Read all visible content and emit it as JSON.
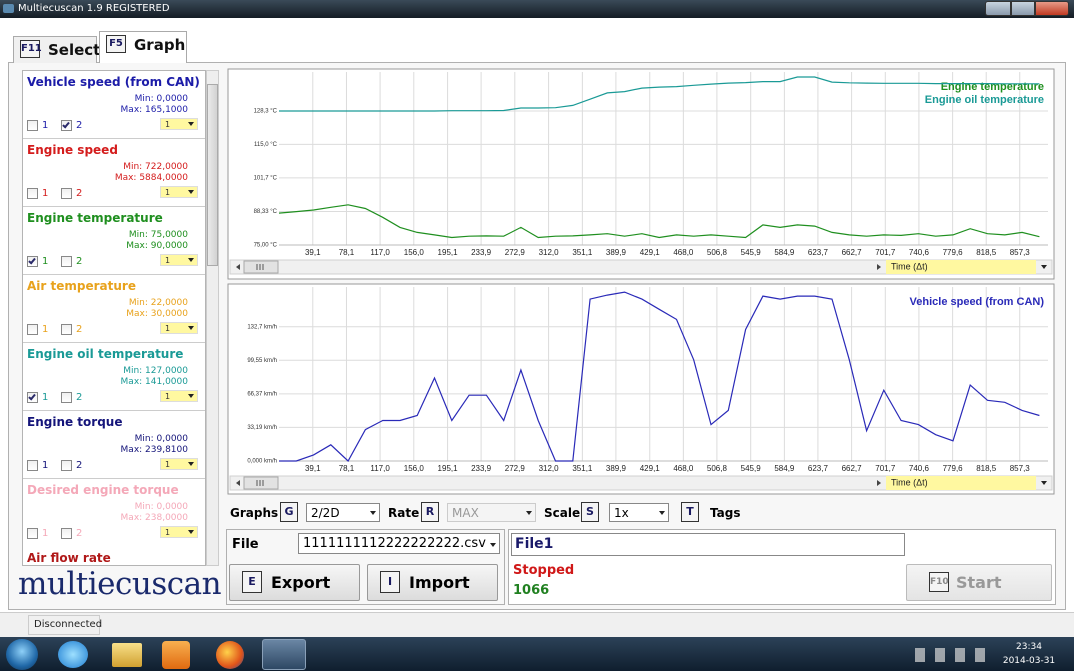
{
  "window": {
    "title": "Multiecuscan 1.9 REGISTERED"
  },
  "tabs": [
    {
      "key": "F11",
      "label": "Select"
    },
    {
      "key": "F5",
      "label": "Graph"
    }
  ],
  "sidebar": {
    "channels": [
      "1",
      "2"
    ],
    "items": [
      {
        "name": "Vehicle speed (from CAN)",
        "color": "#1c1ca8",
        "min": "Min: 0,0000",
        "max": "Max: 165,1000",
        "checked": [
          false,
          true
        ],
        "scale": "1"
      },
      {
        "name": "Engine speed",
        "color": "#d41c1c",
        "min": "Min: 722,0000",
        "max": "Max: 5884,0000",
        "checked": [
          false,
          false
        ],
        "scale": "1"
      },
      {
        "name": "Engine temperature",
        "color": "#1f8f1f",
        "min": "Min: 75,0000",
        "max": "Max: 90,0000",
        "checked": [
          true,
          false
        ],
        "scale": "1"
      },
      {
        "name": "Air temperature",
        "color": "#e8a21c",
        "min": "Min: 22,0000",
        "max": "Max: 30,0000",
        "checked": [
          false,
          false
        ],
        "scale": "1"
      },
      {
        "name": "Engine oil temperature",
        "color": "#1a9a96",
        "min": "Min: 127,0000",
        "max": "Max: 141,0000",
        "checked": [
          true,
          false
        ],
        "scale": "1"
      },
      {
        "name": "Engine torque",
        "color": "#14147a",
        "min": "Min: 0,0000",
        "max": "Max: 239,8100",
        "checked": [
          false,
          false
        ],
        "scale": "1"
      },
      {
        "name": "Desired engine torque",
        "color": "#f4a8b8",
        "min": "Min: 0,0000",
        "max": "Max: 238,0000",
        "checked": [
          false,
          false
        ],
        "scale": "1"
      },
      {
        "name": "Air flow rate",
        "color": "#b01818"
      }
    ]
  },
  "logo": "multiecuscan",
  "chart_data": [
    {
      "type": "line",
      "grid": true,
      "x_label": "Time (Δt)",
      "x": [
        0,
        20,
        40,
        60,
        80,
        100,
        120,
        140,
        160,
        180,
        200,
        220,
        240,
        260,
        280,
        300,
        320,
        340,
        360,
        380,
        400,
        420,
        440,
        460,
        480,
        500,
        520,
        540,
        560,
        580,
        600,
        620,
        640,
        660,
        680,
        700,
        720,
        740,
        760,
        780,
        800,
        820,
        840,
        860,
        880
      ],
      "series": [
        {
          "name": "Engine temperature",
          "color": "#1f8f1f",
          "values": [
            87.7,
            88.3,
            88.9,
            90,
            91,
            89.5,
            86,
            82,
            80,
            79,
            78,
            78.5,
            78.6,
            78.5,
            82,
            78,
            78.5,
            78.6,
            79,
            79.5,
            78.5,
            79.5,
            78,
            79,
            78.5,
            79,
            78.5,
            78,
            83,
            82,
            83,
            82.5,
            80,
            79,
            78.5,
            79,
            78.8,
            79.5,
            78.5,
            79,
            81.5,
            79.5,
            79,
            80,
            78.3
          ]
        },
        {
          "name": "Engine oil temperature",
          "color": "#1a9a96",
          "values": [
            128.3,
            128.3,
            128.3,
            128.3,
            128.3,
            128.3,
            128.3,
            128.3,
            128.3,
            128.3,
            128.4,
            128.4,
            128.4,
            128.5,
            129.5,
            129.5,
            129.6,
            130.5,
            133,
            135.5,
            136,
            137.4,
            137.8,
            138,
            138.5,
            139,
            139.4,
            139.6,
            140,
            140,
            141.8,
            141.8,
            139.8,
            139.5,
            139.4,
            139.3,
            139.3,
            139.3,
            139.2,
            139.2,
            139.2,
            139.2,
            139.1,
            139.1,
            139.1
          ]
        }
      ],
      "xlim": [
        0,
        890
      ],
      "ylim": [
        75,
        143.8
      ],
      "xticks": [
        {
          "value": 39.1,
          "label": "39,1"
        },
        {
          "value": 78.1,
          "label": "78,1"
        },
        {
          "value": 117.0,
          "label": "117,0"
        },
        {
          "value": 156.0,
          "label": "156,0"
        },
        {
          "value": 195.1,
          "label": "195,1"
        },
        {
          "value": 233.9,
          "label": "233,9"
        },
        {
          "value": 272.9,
          "label": "272,9"
        },
        {
          "value": 312.0,
          "label": "312,0"
        },
        {
          "value": 351.1,
          "label": "351,1"
        },
        {
          "value": 389.9,
          "label": "389,9"
        },
        {
          "value": 429.1,
          "label": "429,1"
        },
        {
          "value": 468.0,
          "label": "468,0"
        },
        {
          "value": 506.8,
          "label": "506,8"
        },
        {
          "value": 545.9,
          "label": "545,9"
        },
        {
          "value": 584.9,
          "label": "584,9"
        },
        {
          "value": 623.7,
          "label": "623,7"
        },
        {
          "value": 662.7,
          "label": "662,7"
        },
        {
          "value": 701.7,
          "label": "701,7"
        },
        {
          "value": 740.6,
          "label": "740,6"
        },
        {
          "value": 779.6,
          "label": "779,6"
        },
        {
          "value": 818.5,
          "label": "818,5"
        },
        {
          "value": 857.3,
          "label": "857,3"
        }
      ],
      "yticks": [
        {
          "value": 75.0,
          "label": "75,00 °C"
        },
        {
          "value": 88.33,
          "label": "88,33 °C"
        },
        {
          "value": 101.7,
          "label": "101,7 °C"
        },
        {
          "value": 115.0,
          "label": "115,0 °C"
        },
        {
          "value": 128.3,
          "label": "128,3 °C"
        }
      ]
    },
    {
      "type": "line",
      "grid": true,
      "x_label": "Time (Δt)",
      "x": [
        0,
        20,
        40,
        60,
        80,
        100,
        120,
        140,
        160,
        180,
        200,
        220,
        240,
        260,
        280,
        300,
        320,
        340,
        360,
        380,
        400,
        420,
        440,
        460,
        480,
        500,
        520,
        540,
        560,
        580,
        600,
        620,
        640,
        660,
        680,
        700,
        720,
        740,
        760,
        780,
        800,
        820,
        840,
        860,
        880
      ],
      "series": [
        {
          "name": "Vehicle speed (from CAN)",
          "color": "#2a2ab8",
          "values": [
            0,
            0,
            6,
            16,
            0,
            31,
            40,
            40,
            45,
            82,
            40,
            65,
            65,
            40,
            90,
            40,
            0,
            0,
            160,
            164,
            167,
            160,
            150,
            140,
            100,
            36,
            50,
            130,
            163,
            160,
            163,
            163,
            160,
            100,
            30,
            70,
            40,
            36,
            26,
            20,
            75,
            60,
            58,
            50,
            45
          ]
        }
      ],
      "xlim": [
        0,
        890
      ],
      "ylim": [
        0,
        172
      ],
      "xticks": [
        {
          "value": 39.1,
          "label": "39,1"
        },
        {
          "value": 78.1,
          "label": "78,1"
        },
        {
          "value": 117.0,
          "label": "117,0"
        },
        {
          "value": 156.0,
          "label": "156,0"
        },
        {
          "value": 195.1,
          "label": "195,1"
        },
        {
          "value": 233.9,
          "label": "233,9"
        },
        {
          "value": 272.9,
          "label": "272,9"
        },
        {
          "value": 312.0,
          "label": "312,0"
        },
        {
          "value": 351.1,
          "label": "351,1"
        },
        {
          "value": 389.9,
          "label": "389,9"
        },
        {
          "value": 429.1,
          "label": "429,1"
        },
        {
          "value": 468.0,
          "label": "468,0"
        },
        {
          "value": 506.8,
          "label": "506,8"
        },
        {
          "value": 545.9,
          "label": "545,9"
        },
        {
          "value": 584.9,
          "label": "584,9"
        },
        {
          "value": 623.7,
          "label": "623,7"
        },
        {
          "value": 662.7,
          "label": "662,7"
        },
        {
          "value": 701.7,
          "label": "701,7"
        },
        {
          "value": 740.6,
          "label": "740,6"
        },
        {
          "value": 779.6,
          "label": "779,6"
        },
        {
          "value": 818.5,
          "label": "818,5"
        },
        {
          "value": 857.3,
          "label": "857,3"
        }
      ],
      "yticks": [
        {
          "value": 0,
          "label": "0,000 km/h"
        },
        {
          "value": 33.19,
          "label": "33,19 km/h"
        },
        {
          "value": 66.37,
          "label": "66,37 km/h"
        },
        {
          "value": 99.55,
          "label": "99,55 km/h"
        },
        {
          "value": 132.7,
          "label": "132,7 km/h"
        }
      ]
    }
  ],
  "controls": {
    "graphs": {
      "label": "Graphs",
      "key": "G",
      "value": "2/2D"
    },
    "rate": {
      "label": "Rate",
      "key": "R",
      "value": "MAX"
    },
    "scale": {
      "label": "Scale",
      "key": "S",
      "value": "1x"
    },
    "tags": {
      "key": "T",
      "label": "Tags"
    }
  },
  "file": {
    "label": "File",
    "name": "1111111112222222222.csv",
    "export": {
      "key": "E",
      "label": "Export"
    },
    "import": {
      "key": "I",
      "label": "Import"
    }
  },
  "session": {
    "name": "File1",
    "state": "Stopped",
    "count": 1066,
    "start": {
      "key": "F10",
      "label": "Start"
    }
  },
  "status": "Disconnected",
  "taskbar": {
    "time": "23:34",
    "date": "2014-03-31"
  }
}
